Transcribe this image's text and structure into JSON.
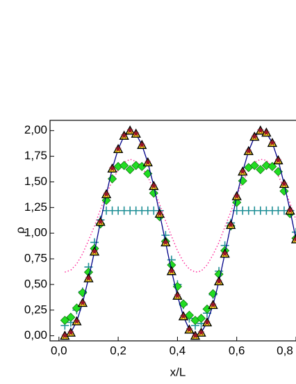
{
  "chart_data": {
    "type": "line",
    "xlabel": "x/L",
    "ylabel": "ρ",
    "xlim": [
      -0.03,
      0.8
    ],
    "ylim": [
      -0.05,
      2.1
    ],
    "xticks": [
      {
        "value": 0,
        "label": "0,0"
      },
      {
        "value": 0.2,
        "label": "0,2"
      },
      {
        "value": 0.4,
        "label": "0,4"
      },
      {
        "value": 0.6,
        "label": "0,6"
      },
      {
        "value": 0.8,
        "label": "0,8"
      }
    ],
    "yticks": [
      {
        "value": 0,
        "label": "0,00"
      },
      {
        "value": 0.25,
        "label": "0,25"
      },
      {
        "value": 0.5,
        "label": "0,50"
      },
      {
        "value": 0.75,
        "label": "0,75"
      },
      {
        "value": 1,
        "label": "1,00"
      },
      {
        "value": 1.25,
        "label": "1,25"
      },
      {
        "value": 1.5,
        "label": "1,50"
      },
      {
        "value": 1.75,
        "label": "1,75"
      },
      {
        "value": 2,
        "label": "2,00"
      }
    ],
    "x": [
      0.02,
      0.04,
      0.06,
      0.08,
      0.1,
      0.12,
      0.14,
      0.16,
      0.18,
      0.2,
      0.22,
      0.24,
      0.26,
      0.28,
      0.3,
      0.32,
      0.34,
      0.36,
      0.38,
      0.4,
      0.42,
      0.44,
      0.46,
      0.48,
      0.5,
      0.52,
      0.54,
      0.56,
      0.58,
      0.6,
      0.62,
      0.64,
      0.66,
      0.68,
      0.7,
      0.72,
      0.74,
      0.76,
      0.78,
      0.8
    ],
    "series": [
      {
        "marker": "plus",
        "color": "#1f8f96",
        "values": [
          0.1,
          0.13,
          0.25,
          0.43,
          0.67,
          0.91,
          1.13,
          1.22,
          1.22,
          1.22,
          1.22,
          1.22,
          1.22,
          1.22,
          1.22,
          1.22,
          1.22,
          0.98,
          0.74,
          0.5,
          0.3,
          0.17,
          0.1,
          0.12,
          0.22,
          0.4,
          0.63,
          0.88,
          1.1,
          1.22,
          1.22,
          1.22,
          1.22,
          1.22,
          1.22,
          1.22,
          1.22,
          1.22,
          1.22,
          1.01
        ]
      },
      {
        "marker": "dotted",
        "color": "#ff2a9a",
        "values": [
          0.62,
          0.64,
          0.7,
          0.8,
          0.93,
          1.07,
          1.23,
          1.38,
          1.51,
          1.62,
          1.69,
          1.72,
          1.7,
          1.65,
          1.55,
          1.42,
          1.28,
          1.12,
          0.97,
          0.83,
          0.72,
          0.65,
          0.62,
          0.63,
          0.69,
          0.79,
          0.91,
          1.06,
          1.21,
          1.37,
          1.5,
          1.61,
          1.69,
          1.72,
          1.71,
          1.65,
          1.56,
          1.44,
          1.29,
          1.13
        ]
      },
      {
        "marker": "diamond",
        "color": "#22dd22",
        "edge_color": "#117711",
        "values": [
          0.15,
          0.18,
          0.27,
          0.42,
          0.62,
          0.85,
          1.09,
          1.32,
          1.53,
          1.65,
          1.66,
          1.62,
          1.66,
          1.65,
          1.58,
          1.39,
          1.16,
          0.92,
          0.69,
          0.48,
          0.31,
          0.2,
          0.15,
          0.17,
          0.26,
          0.41,
          0.6,
          0.83,
          1.07,
          1.3,
          1.51,
          1.64,
          1.66,
          1.62,
          1.66,
          1.65,
          1.6,
          1.41,
          1.19,
          0.95
        ]
      },
      {
        "marker": "solid",
        "color": "#000088",
        "values": [
          0.0,
          0.03,
          0.14,
          0.32,
          0.56,
          0.82,
          1.11,
          1.38,
          1.63,
          1.82,
          1.95,
          2.0,
          1.97,
          1.86,
          1.69,
          1.46,
          1.19,
          0.91,
          0.63,
          0.39,
          0.19,
          0.06,
          0.0,
          0.03,
          0.13,
          0.3,
          0.53,
          0.8,
          1.08,
          1.36,
          1.6,
          1.8,
          1.94,
          2.0,
          1.98,
          1.88,
          1.71,
          1.48,
          1.22,
          0.94
        ]
      },
      {
        "marker": "triangle",
        "color": "#ffee22",
        "edge_color": "#000000",
        "values": [
          0.0,
          0.03,
          0.14,
          0.32,
          0.56,
          0.82,
          1.11,
          1.38,
          1.63,
          1.82,
          1.95,
          2.0,
          1.97,
          1.86,
          1.69,
          1.46,
          1.19,
          0.91,
          0.63,
          0.39,
          0.19,
          0.06,
          0.0,
          0.03,
          0.13,
          0.3,
          0.53,
          0.8,
          1.08,
          1.36,
          1.6,
          1.8,
          1.94,
          2.0,
          1.98,
          1.88,
          1.71,
          1.48,
          1.22,
          0.94
        ]
      },
      {
        "marker": "star",
        "color": "#99102a",
        "values": [
          0.0,
          0.03,
          0.14,
          0.32,
          0.56,
          0.82,
          1.11,
          1.38,
          1.63,
          1.82,
          1.95,
          2.0,
          1.97,
          1.86,
          1.69,
          1.46,
          1.19,
          0.91,
          0.63,
          0.39,
          0.19,
          0.06,
          0.0,
          0.03,
          0.13,
          0.3,
          0.53,
          0.8,
          1.08,
          1.36,
          1.6,
          1.8,
          1.94,
          2.0,
          1.98,
          1.88,
          1.71,
          1.48,
          1.22,
          0.94
        ]
      }
    ]
  }
}
